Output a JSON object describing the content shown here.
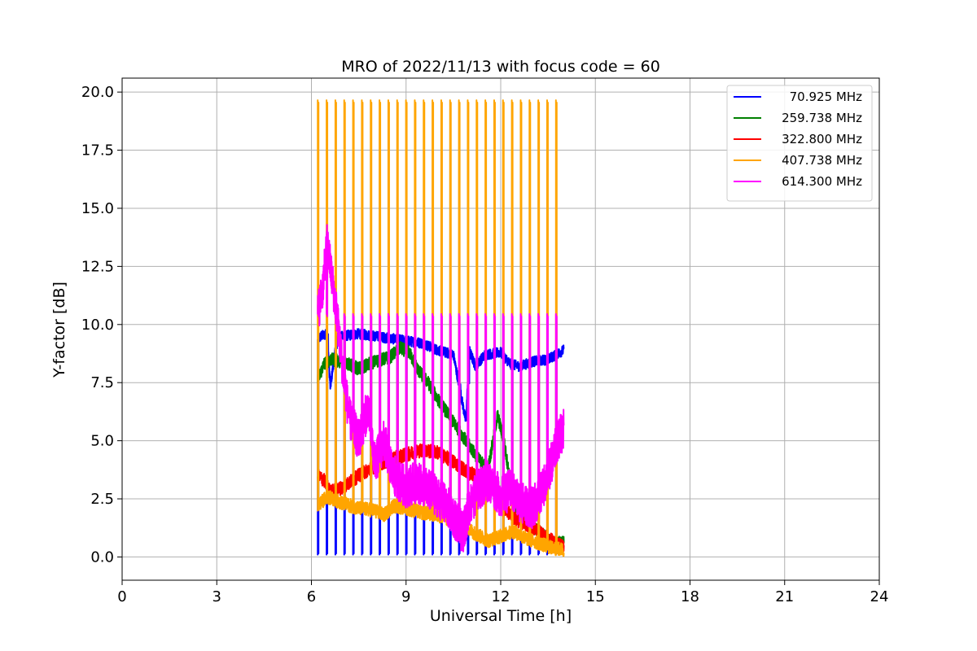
{
  "chart_data": {
    "type": "line",
    "title": "MRO of 2022/11/13 with focus code = 60",
    "xlabel": "Universal Time [h]",
    "ylabel": "Y-factor [dB]",
    "xlim": [
      0,
      24
    ],
    "ylim": [
      -1,
      20.6
    ],
    "xticks": [
      0,
      3,
      6,
      9,
      12,
      15,
      18,
      21,
      24
    ],
    "yticks": [
      0.0,
      2.5,
      5.0,
      7.5,
      10.0,
      12.5,
      15.0,
      17.5,
      20.0
    ],
    "xtick_labels": [
      "0",
      "3",
      "6",
      "9",
      "12",
      "15",
      "18",
      "21",
      "24"
    ],
    "ytick_labels": [
      "0.0",
      "2.5",
      "5.0",
      "7.5",
      "10.0",
      "12.5",
      "15.0",
      "17.5",
      "20.0"
    ],
    "grid": true,
    "legend_position": "top-right",
    "calibration": {
      "start": 6.2,
      "end": 13.75,
      "count": 28,
      "pulse_width": 0.05
    },
    "series": [
      {
        "name": "70.925 MHz",
        "color": "#0000ff",
        "noise": 0.22,
        "pulse_low": 0.1,
        "x": [
          6.2,
          6.3,
          6.5,
          6.6,
          6.8,
          7.0,
          7.5,
          8.0,
          8.5,
          9.0,
          9.5,
          10.0,
          10.5,
          10.9,
          11.0,
          11.2,
          11.5,
          12.0,
          12.3,
          12.6,
          13.0,
          13.5,
          14.0
        ],
        "y": [
          9.3,
          9.5,
          9.6,
          7.3,
          9.4,
          9.5,
          9.6,
          9.5,
          9.4,
          9.3,
          9.2,
          8.9,
          8.7,
          5.8,
          8.9,
          8.2,
          8.7,
          8.8,
          8.3,
          8.2,
          8.4,
          8.5,
          8.9
        ]
      },
      {
        "name": "259.738 MHz",
        "color": "#008000",
        "noise": 0.28,
        "x": [
          6.2,
          6.4,
          6.6,
          7.0,
          7.5,
          8.0,
          8.5,
          8.8,
          9.1,
          9.4,
          9.7,
          10.0,
          10.3,
          10.6,
          11.0,
          11.3,
          11.6,
          11.9,
          12.1,
          12.4,
          12.7,
          13.0,
          13.3,
          13.6,
          14.0
        ],
        "y": [
          7.6,
          8.3,
          8.5,
          8.4,
          8.1,
          8.4,
          8.6,
          9.0,
          8.8,
          8.0,
          7.5,
          6.8,
          6.2,
          5.6,
          4.8,
          4.2,
          3.8,
          6.1,
          5.0,
          2.4,
          1.6,
          1.3,
          1.0,
          0.6,
          0.6
        ]
      },
      {
        "name": "322.800 MHz",
        "color": "#ff0000",
        "noise": 0.3,
        "x": [
          6.2,
          6.4,
          6.6,
          7.0,
          7.5,
          8.0,
          8.5,
          9.0,
          9.5,
          10.0,
          10.5,
          11.0,
          11.5,
          11.8,
          12.0,
          12.5,
          13.0,
          13.5,
          14.0
        ],
        "y": [
          3.5,
          3.3,
          2.8,
          3.0,
          3.5,
          3.9,
          4.2,
          4.4,
          4.6,
          4.5,
          4.1,
          3.6,
          3.4,
          2.9,
          2.2,
          1.6,
          1.3,
          0.8,
          0.4
        ]
      },
      {
        "name": "407.738 MHz",
        "color": "#ffa500",
        "noise": 0.3,
        "pulse_high": 19.65,
        "x": [
          6.2,
          6.5,
          7.0,
          7.5,
          8.0,
          8.3,
          8.6,
          9.0,
          9.5,
          10.0,
          10.4,
          10.8,
          11.2,
          11.6,
          12.0,
          12.4,
          12.8,
          13.2,
          13.6,
          14.0
        ],
        "y": [
          2.2,
          2.6,
          2.3,
          2.1,
          2.0,
          1.8,
          2.2,
          2.1,
          1.9,
          1.8,
          1.6,
          1.4,
          1.0,
          0.7,
          0.9,
          1.1,
          0.8,
          0.6,
          0.4,
          0.3
        ]
      },
      {
        "name": "614.300 MHz",
        "color": "#ff00ff",
        "noise": 0.9,
        "pulse_high": 10.45,
        "x": [
          6.2,
          6.35,
          6.5,
          6.6,
          6.8,
          7.0,
          7.2,
          7.5,
          7.8,
          8.0,
          8.3,
          8.6,
          9.0,
          9.3,
          9.6,
          10.0,
          10.4,
          10.8,
          11.0,
          11.3,
          11.6,
          12.0,
          12.3,
          12.6,
          13.0,
          13.3,
          13.6,
          13.8,
          14.0
        ],
        "y": [
          10.5,
          11.5,
          13.5,
          12.5,
          10.5,
          8.0,
          6.0,
          5.0,
          6.5,
          4.0,
          5.0,
          3.5,
          3.0,
          3.2,
          3.0,
          2.6,
          2.0,
          1.0,
          2.2,
          2.9,
          3.3,
          2.6,
          2.9,
          2.4,
          2.1,
          2.8,
          4.0,
          5.0,
          5.5
        ]
      }
    ]
  }
}
